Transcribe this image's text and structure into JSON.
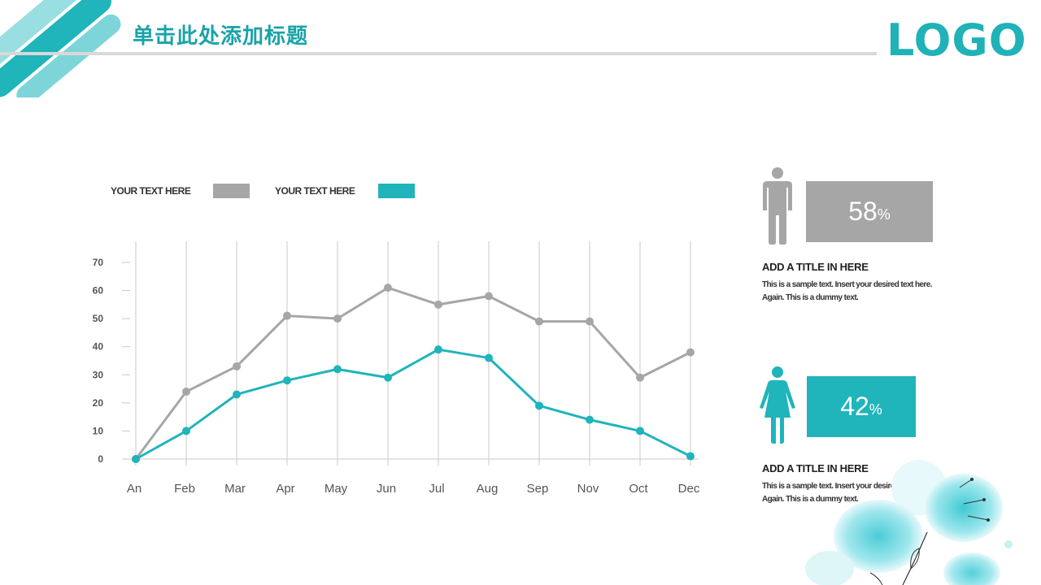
{
  "header": {
    "title": "单击此处添加标题",
    "logo": "LOGO"
  },
  "legend": [
    {
      "label": "YOUR TEXT HERE",
      "color": "#a6a6a6"
    },
    {
      "label": "YOUR TEXT HERE",
      "color": "#20b4bb"
    }
  ],
  "chart_data": {
    "type": "line",
    "categories": [
      "An",
      "Feb",
      "Mar",
      "Apr",
      "May",
      "Jun",
      "Jul",
      "Aug",
      "Sep",
      "Nov",
      "Oct",
      "Dec"
    ],
    "ylim": [
      0,
      70
    ],
    "yticks": [
      "0",
      "10",
      "20",
      "30",
      "40",
      "50",
      "60",
      "70"
    ],
    "grid": "vertical",
    "series": [
      {
        "color": "#a6a6a6",
        "values": [
          0,
          24,
          33,
          51,
          50,
          61,
          55,
          58,
          49,
          49,
          29,
          38
        ]
      },
      {
        "color": "#20b4bb",
        "values": [
          0,
          10,
          23,
          28,
          32,
          29,
          39,
          36,
          19,
          14,
          10,
          1
        ]
      }
    ]
  },
  "stats": [
    {
      "icon": "male-person-icon",
      "percent": "58",
      "unit": "%",
      "color": "#a6a6a6",
      "title": "ADD A TITLE IN HERE",
      "text": "This is a sample text. Insert your desired text here. Again. This is a dummy text."
    },
    {
      "icon": "female-person-icon",
      "percent": "42",
      "unit": "%",
      "color": "#20b4bb",
      "title": "ADD A TITLE IN HERE",
      "text": "This is a sample text. Insert your desired text here. Again. This is a dummy text."
    }
  ]
}
